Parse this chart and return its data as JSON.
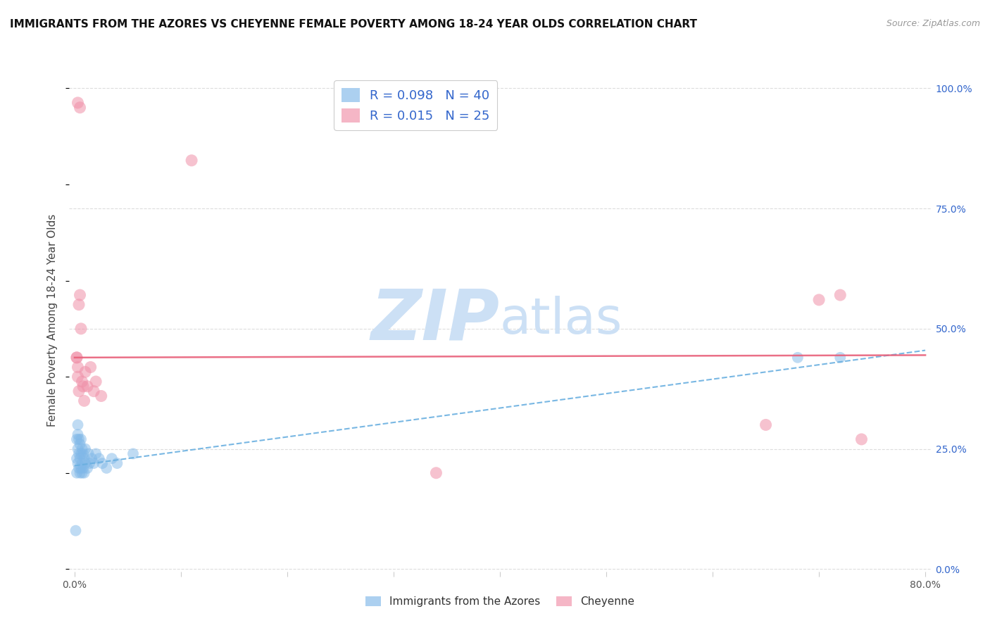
{
  "title": "IMMIGRANTS FROM THE AZORES VS CHEYENNE FEMALE POVERTY AMONG 18-24 YEAR OLDS CORRELATION CHART",
  "source": "Source: ZipAtlas.com",
  "ylabel": "Female Poverty Among 18-24 Year Olds",
  "x_ticks": [
    0.0,
    0.1,
    0.2,
    0.3,
    0.4,
    0.5,
    0.6,
    0.7,
    0.8
  ],
  "x_tick_labels": [
    "0.0%",
    "",
    "",
    "",
    "",
    "",
    "",
    "",
    "80.0%"
  ],
  "y_ticks_right": [
    0.0,
    0.25,
    0.5,
    0.75,
    1.0
  ],
  "y_tick_labels_right": [
    "0.0%",
    "25.0%",
    "50.0%",
    "75.0%",
    "100.0%"
  ],
  "blue_scatter_x": [
    0.001,
    0.002,
    0.002,
    0.002,
    0.003,
    0.003,
    0.003,
    0.003,
    0.004,
    0.004,
    0.004,
    0.005,
    0.005,
    0.005,
    0.006,
    0.006,
    0.006,
    0.007,
    0.007,
    0.007,
    0.008,
    0.008,
    0.009,
    0.009,
    0.01,
    0.01,
    0.012,
    0.013,
    0.014,
    0.016,
    0.018,
    0.02,
    0.023,
    0.026,
    0.03,
    0.035,
    0.04,
    0.055,
    0.68,
    0.72
  ],
  "blue_scatter_y": [
    0.08,
    0.2,
    0.23,
    0.27,
    0.22,
    0.25,
    0.28,
    0.3,
    0.21,
    0.24,
    0.27,
    0.2,
    0.23,
    0.26,
    0.21,
    0.24,
    0.27,
    0.2,
    0.22,
    0.25,
    0.21,
    0.24,
    0.2,
    0.23,
    0.22,
    0.25,
    0.21,
    0.24,
    0.22,
    0.23,
    0.22,
    0.24,
    0.23,
    0.22,
    0.21,
    0.23,
    0.22,
    0.24,
    0.44,
    0.44
  ],
  "pink_scatter_x": [
    0.002,
    0.003,
    0.004,
    0.005,
    0.006,
    0.007,
    0.008,
    0.009,
    0.01,
    0.012,
    0.015,
    0.018,
    0.02,
    0.025,
    0.003,
    0.005,
    0.11,
    0.34,
    0.65,
    0.7,
    0.72,
    0.74,
    0.003,
    0.004,
    0.002
  ],
  "pink_scatter_y": [
    0.44,
    0.42,
    0.55,
    0.57,
    0.5,
    0.39,
    0.38,
    0.35,
    0.41,
    0.38,
    0.42,
    0.37,
    0.39,
    0.36,
    0.97,
    0.96,
    0.85,
    0.2,
    0.3,
    0.56,
    0.57,
    0.27,
    0.4,
    0.37,
    0.44
  ],
  "blue_trend_x": [
    0.0,
    0.8
  ],
  "blue_trend_y": [
    0.215,
    0.455
  ],
  "pink_trend_x": [
    0.0,
    0.8
  ],
  "pink_trend_y": [
    0.44,
    0.445
  ],
  "watermark_zip": "ZIP",
  "watermark_atlas": "atlas",
  "watermark_color": "#cce0f5",
  "bg_color": "#ffffff",
  "grid_color": "#dddddd",
  "blue_dot_color": "#80b8e8",
  "pink_dot_color": "#f090a8",
  "blue_line_color": "#6ab0e0",
  "pink_line_color": "#e8607a",
  "title_fontsize": 11,
  "source_fontsize": 9,
  "legend_blue_r": "0.098",
  "legend_blue_n": "40",
  "legend_pink_r": "0.015",
  "legend_pink_n": "25"
}
